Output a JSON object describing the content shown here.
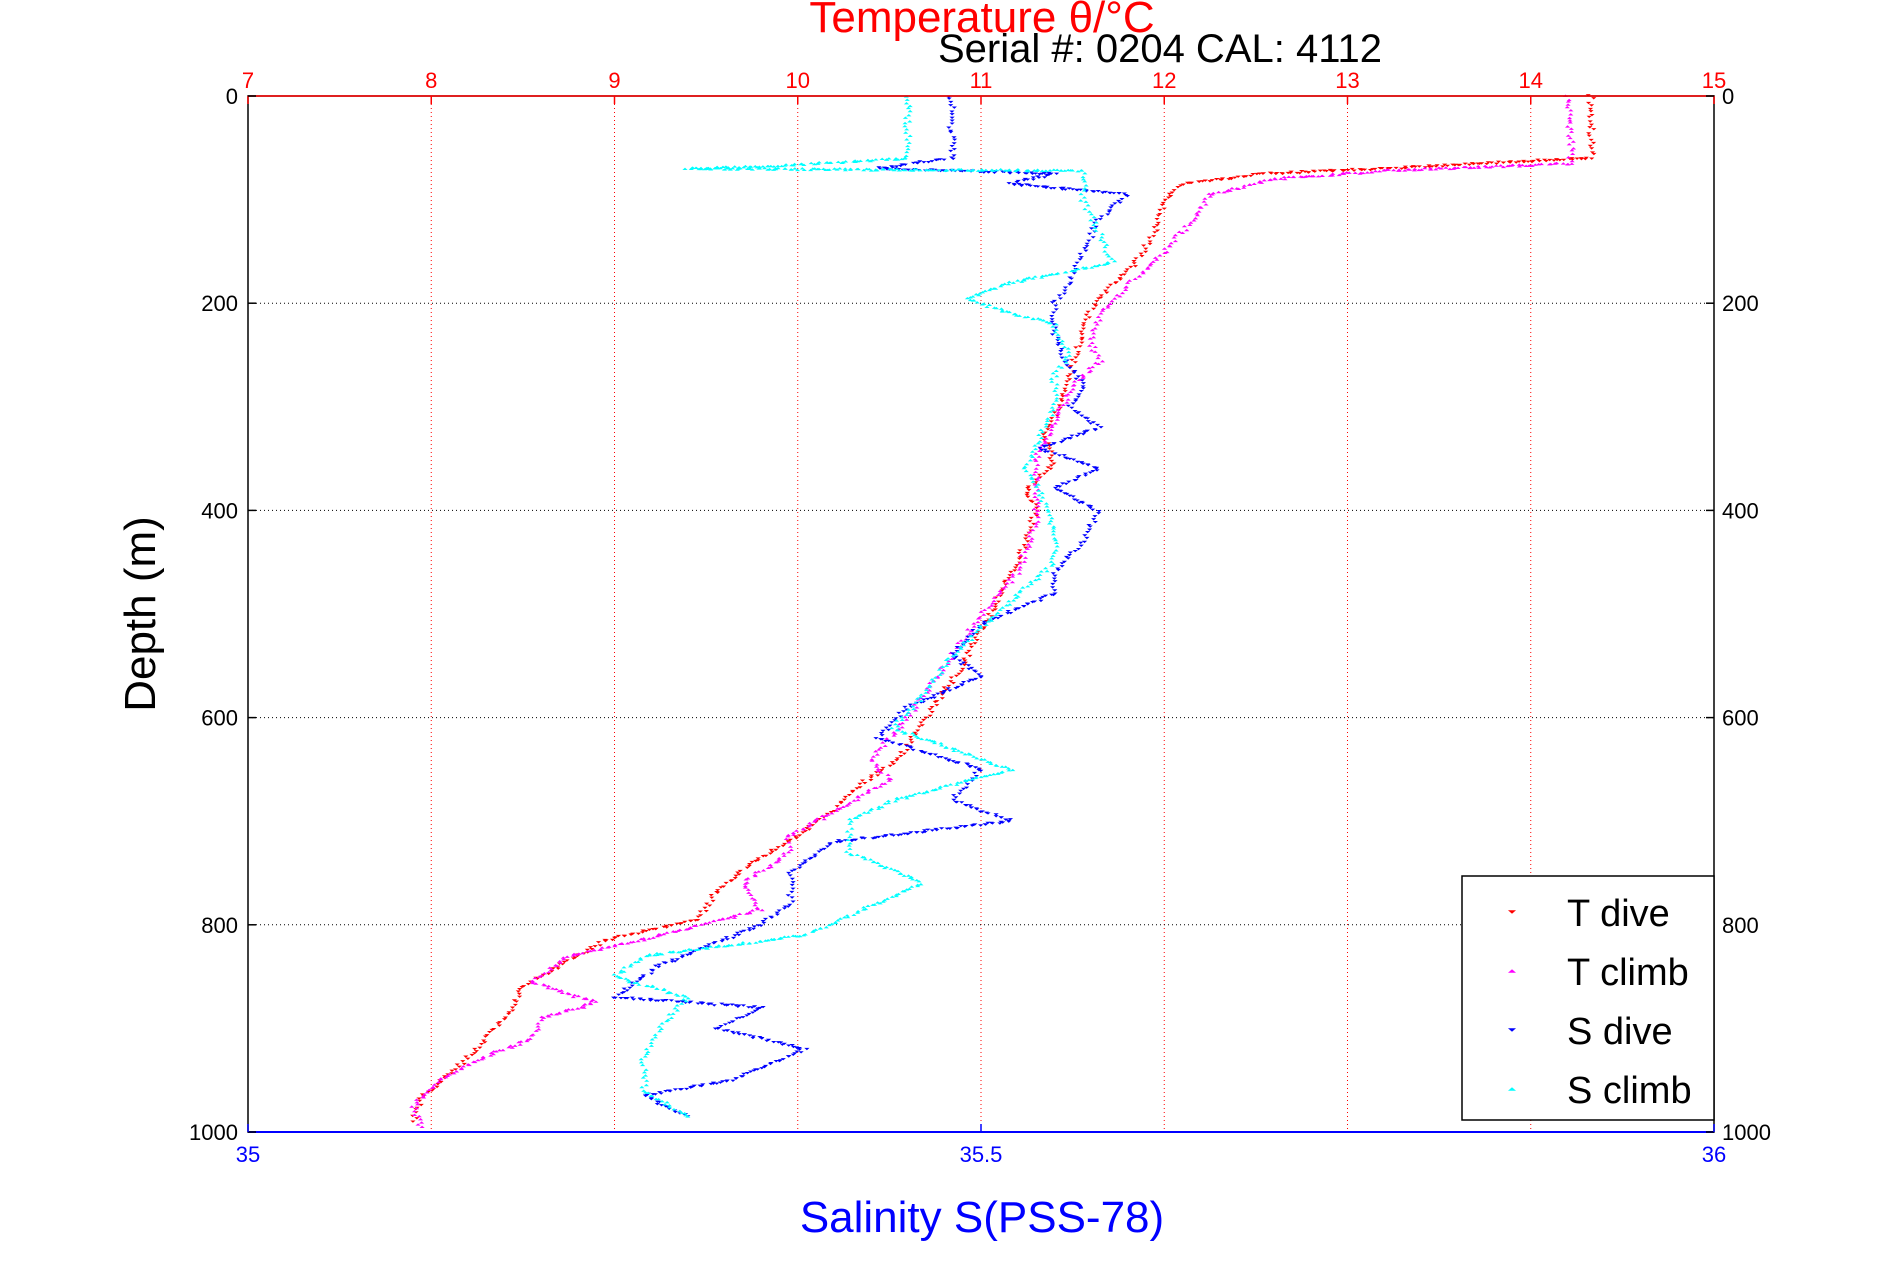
{
  "chart_data": {
    "type": "scatter",
    "title": "Temperature θ/°C",
    "subtitle": "Serial #: 0204  CAL: 4112",
    "ylabel": "Depth (m)",
    "xlabel": "Salinity S(PSS-78)",
    "top_axis": {
      "label": "Temperature θ/°C",
      "range": [
        7,
        15
      ],
      "ticks": [
        "7",
        "8",
        "9",
        "10",
        "11",
        "12",
        "13",
        "14",
        "15"
      ],
      "color": "#ff0000"
    },
    "bottom_axis": {
      "label": "Salinity S(PSS-78)",
      "range": [
        35,
        36
      ],
      "ticks": [
        "35",
        "35.5",
        "36"
      ],
      "color": "#0000ff"
    },
    "y_axis": {
      "label": "Depth (m)",
      "range": [
        0,
        1000
      ],
      "reversed": true,
      "ticks": [
        "0",
        "200",
        "400",
        "600",
        "800",
        "1000"
      ]
    },
    "grid": {
      "vertical": "temperature ticks, red dotted",
      "horizontal": "depth ticks, black dotted"
    },
    "legend": {
      "placement": "bottom-right",
      "entries": [
        "T dive",
        "T climb",
        "S dive",
        "S climb"
      ]
    },
    "series": [
      {
        "name": "T dive",
        "axis": "temperature",
        "marker": "triangle-down",
        "color": "#ff0000",
        "points": [
          [
            14.33,
            0
          ],
          [
            14.33,
            30
          ],
          [
            14.33,
            60
          ],
          [
            13.2,
            70
          ],
          [
            12.55,
            75
          ],
          [
            12.1,
            85
          ],
          [
            12.0,
            100
          ],
          [
            11.95,
            130
          ],
          [
            11.85,
            160
          ],
          [
            11.7,
            185
          ],
          [
            11.6,
            205
          ],
          [
            11.55,
            230
          ],
          [
            11.5,
            260
          ],
          [
            11.45,
            290
          ],
          [
            11.35,
            330
          ],
          [
            11.4,
            355
          ],
          [
            11.25,
            380
          ],
          [
            11.3,
            400
          ],
          [
            11.2,
            450
          ],
          [
            11.05,
            500
          ],
          [
            10.9,
            550
          ],
          [
            10.7,
            600
          ],
          [
            10.55,
            640
          ],
          [
            10.3,
            670
          ],
          [
            10.2,
            690
          ],
          [
            9.95,
            720
          ],
          [
            9.75,
            740
          ],
          [
            9.55,
            770
          ],
          [
            9.45,
            795
          ],
          [
            8.95,
            815
          ],
          [
            8.7,
            840
          ],
          [
            8.5,
            860
          ],
          [
            8.45,
            880
          ],
          [
            8.35,
            900
          ],
          [
            8.25,
            920
          ],
          [
            8.1,
            945
          ],
          [
            7.95,
            965
          ],
          [
            7.9,
            990
          ]
        ]
      },
      {
        "name": "T climb",
        "axis": "temperature",
        "marker": "triangle-up",
        "color": "#ff00ff",
        "points": [
          [
            14.2,
            0
          ],
          [
            14.22,
            35
          ],
          [
            14.22,
            65
          ],
          [
            13.2,
            72
          ],
          [
            12.6,
            80
          ],
          [
            12.25,
            95
          ],
          [
            12.15,
            120
          ],
          [
            12.0,
            150
          ],
          [
            11.85,
            175
          ],
          [
            11.65,
            210
          ],
          [
            11.6,
            240
          ],
          [
            11.65,
            255
          ],
          [
            11.5,
            280
          ],
          [
            11.4,
            315
          ],
          [
            11.3,
            350
          ],
          [
            11.3,
            380
          ],
          [
            11.3,
            410
          ],
          [
            11.2,
            460
          ],
          [
            11.0,
            500
          ],
          [
            10.8,
            550
          ],
          [
            10.6,
            600
          ],
          [
            10.4,
            640
          ],
          [
            10.5,
            660
          ],
          [
            10.2,
            690
          ],
          [
            9.95,
            715
          ],
          [
            9.95,
            730
          ],
          [
            9.7,
            760
          ],
          [
            9.8,
            785
          ],
          [
            9.25,
            810
          ],
          [
            8.75,
            830
          ],
          [
            8.55,
            855
          ],
          [
            8.9,
            875
          ],
          [
            8.6,
            890
          ],
          [
            8.55,
            910
          ],
          [
            8.25,
            930
          ],
          [
            8.05,
            950
          ],
          [
            7.9,
            975
          ],
          [
            7.95,
            995
          ]
        ]
      },
      {
        "name": "S dive",
        "axis": "salinity",
        "marker": "triangle-down",
        "color": "#0000ff",
        "points": [
          [
            35.48,
            0
          ],
          [
            35.48,
            30
          ],
          [
            35.48,
            60
          ],
          [
            35.43,
            70
          ],
          [
            35.55,
            75
          ],
          [
            35.52,
            85
          ],
          [
            35.6,
            95
          ],
          [
            35.58,
            120
          ],
          [
            35.57,
            150
          ],
          [
            35.56,
            180
          ],
          [
            35.55,
            200
          ],
          [
            35.55,
            230
          ],
          [
            35.56,
            260
          ],
          [
            35.57,
            280
          ],
          [
            35.56,
            300
          ],
          [
            35.58,
            320
          ],
          [
            35.54,
            340
          ],
          [
            35.58,
            360
          ],
          [
            35.55,
            380
          ],
          [
            35.58,
            400
          ],
          [
            35.57,
            430
          ],
          [
            35.55,
            460
          ],
          [
            35.55,
            480
          ],
          [
            35.5,
            510
          ],
          [
            35.48,
            540
          ],
          [
            35.5,
            560
          ],
          [
            35.45,
            590
          ],
          [
            35.43,
            620
          ],
          [
            35.5,
            650
          ],
          [
            35.48,
            680
          ],
          [
            35.52,
            700
          ],
          [
            35.4,
            720
          ],
          [
            35.37,
            750
          ],
          [
            35.37,
            780
          ],
          [
            35.35,
            800
          ],
          [
            35.28,
            840
          ],
          [
            35.25,
            870
          ],
          [
            35.35,
            880
          ],
          [
            35.32,
            900
          ],
          [
            35.38,
            920
          ],
          [
            35.33,
            950
          ],
          [
            35.27,
            965
          ],
          [
            35.3,
            985
          ]
        ]
      },
      {
        "name": "S climb",
        "axis": "salinity",
        "marker": "triangle-up",
        "color": "#00ffff",
        "points": [
          [
            35.45,
            0
          ],
          [
            35.45,
            30
          ],
          [
            35.45,
            60
          ],
          [
            35.35,
            68
          ],
          [
            35.3,
            70
          ],
          [
            35.57,
            72
          ],
          [
            35.57,
            100
          ],
          [
            35.58,
            130
          ],
          [
            35.59,
            160
          ],
          [
            35.52,
            180
          ],
          [
            35.49,
            195
          ],
          [
            35.51,
            205
          ],
          [
            35.55,
            220
          ],
          [
            35.56,
            250
          ],
          [
            35.55,
            270
          ],
          [
            35.55,
            300
          ],
          [
            35.54,
            330
          ],
          [
            35.53,
            360
          ],
          [
            35.54,
            380
          ],
          [
            35.55,
            420
          ],
          [
            35.55,
            450
          ],
          [
            35.51,
            500
          ],
          [
            35.48,
            540
          ],
          [
            35.46,
            580
          ],
          [
            35.44,
            610
          ],
          [
            35.52,
            650
          ],
          [
            35.44,
            680
          ],
          [
            35.41,
            700
          ],
          [
            35.41,
            730
          ],
          [
            35.46,
            760
          ],
          [
            35.42,
            785
          ],
          [
            35.38,
            810
          ],
          [
            35.27,
            830
          ],
          [
            35.25,
            850
          ],
          [
            35.3,
            870
          ],
          [
            35.28,
            900
          ],
          [
            35.27,
            930
          ],
          [
            35.27,
            960
          ],
          [
            35.3,
            985
          ]
        ]
      }
    ]
  }
}
